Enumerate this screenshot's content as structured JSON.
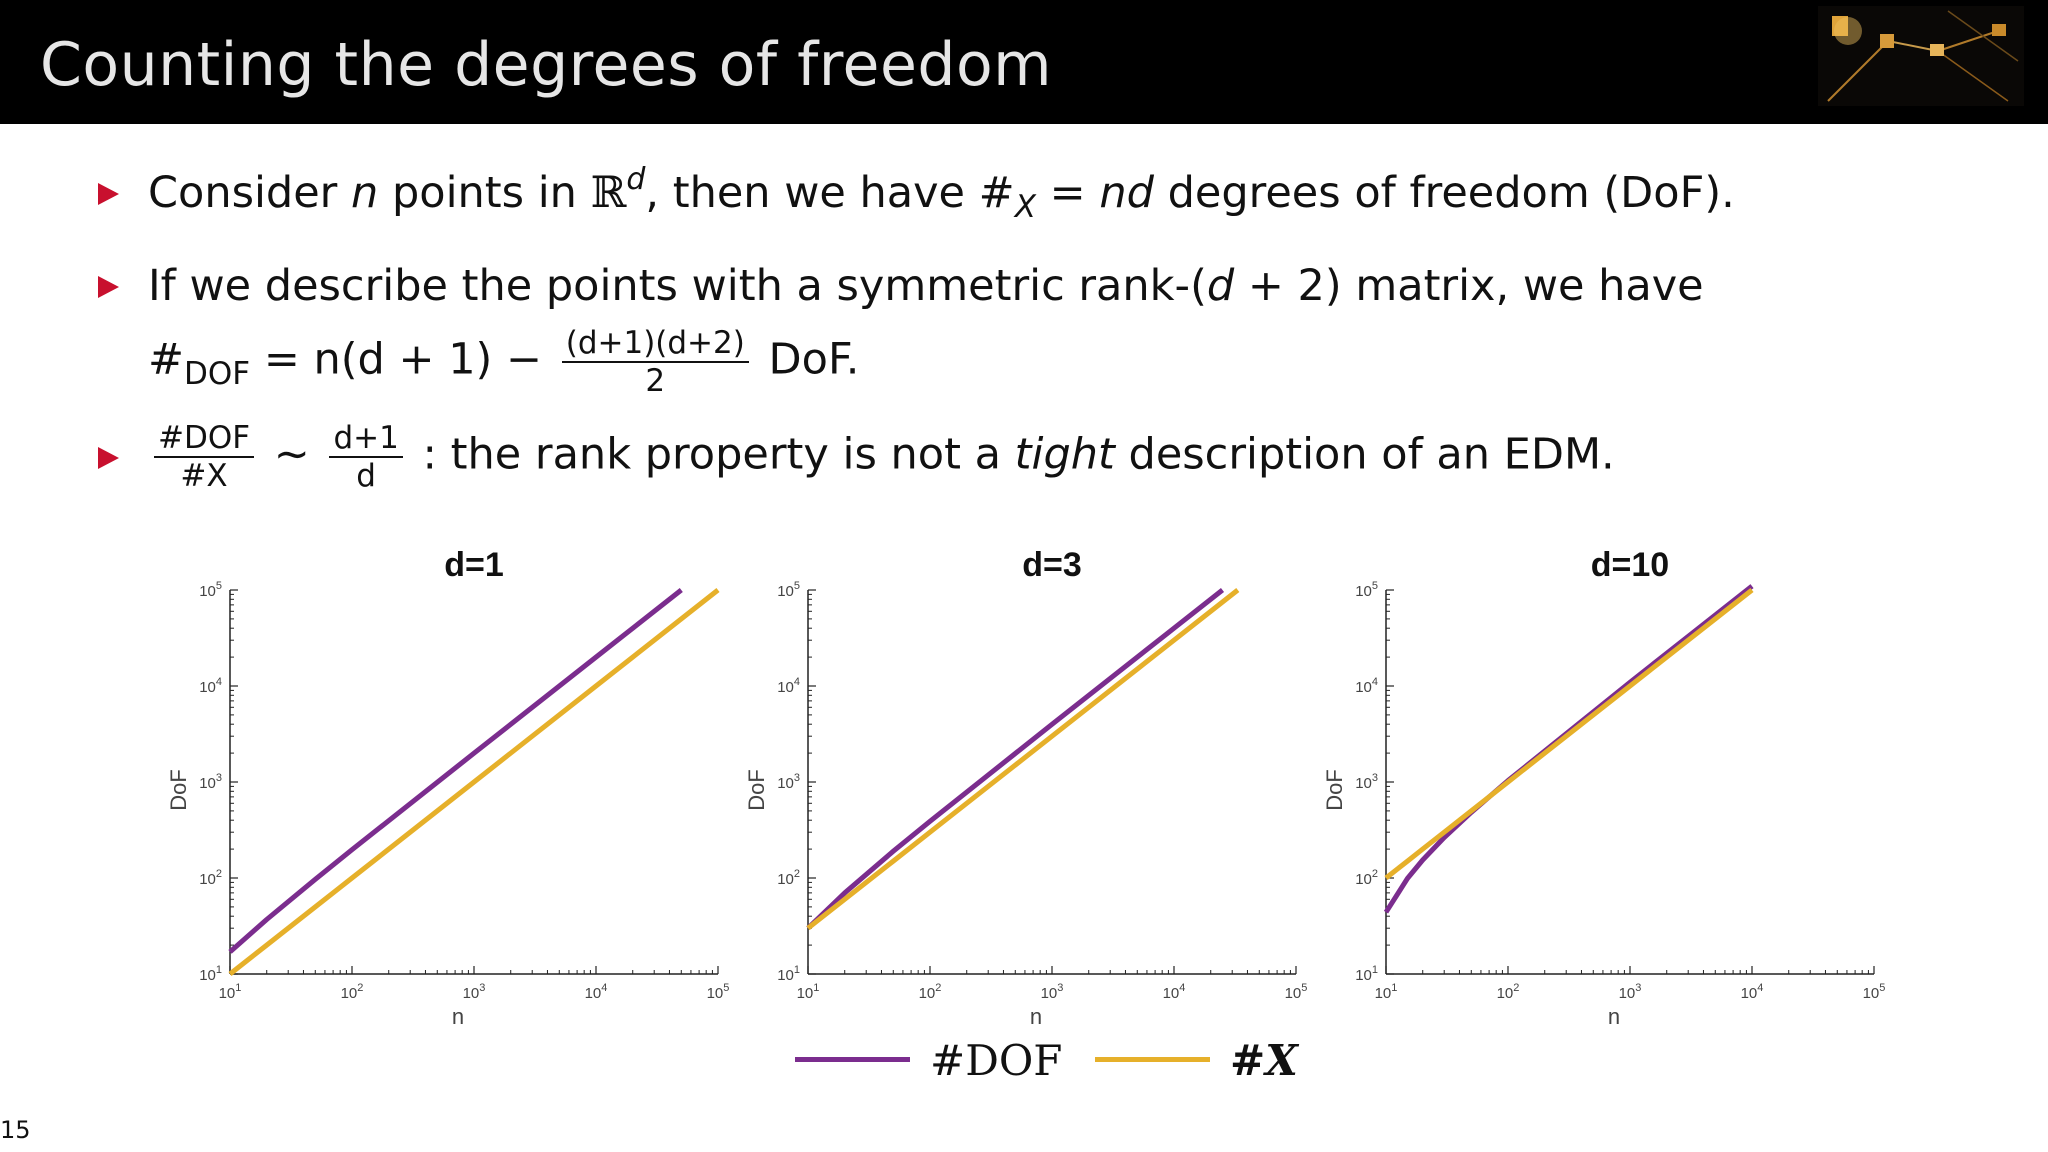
{
  "slide": {
    "title": "Counting the degrees of freedom",
    "page_number": "15"
  },
  "bullets": {
    "b1": {
      "t1": "Consider",
      "n": "n",
      "t2": "points in",
      "R": "ℝ",
      "d": "d",
      "t3": ", then we have #",
      "X": "X",
      "eq": "=",
      "nd": "nd",
      "t4": "degrees of freedom (DoF)."
    },
    "b2": {
      "line1_a": "If we describe the points with a symmetric rank-(",
      "line1_d": "d",
      "line1_b": "+ 2) matrix, we have",
      "hash": "#",
      "dof_sub": "DOF",
      "eq": "= n(d + 1) −",
      "frac_num": "(d+1)(d+2)",
      "frac_den": "2",
      "tail": "DoF."
    },
    "b3": {
      "frac1_num": "#DOF",
      "frac1_den": "#X",
      "sim": "∼",
      "frac2_num": "d+1",
      "frac2_den": "d",
      "t1": ": the rank property is not a",
      "tight": "tight",
      "t2": "description of an EDM."
    }
  },
  "legend": {
    "dof_label": "#DOF",
    "x_label": "#X"
  },
  "colors": {
    "dof": "#7b2d8e",
    "x": "#e6b02a",
    "bullet": "#c8102e"
  },
  "chart_data": [
    {
      "type": "line",
      "title": "d=1",
      "xlabel": "n",
      "ylabel": "DoF",
      "xscale": "log",
      "yscale": "log",
      "xlim": [
        10,
        100000
      ],
      "ylim": [
        10,
        100000
      ],
      "xticks": [
        "10^1",
        "10^2",
        "10^3",
        "10^4",
        "10^5"
      ],
      "yticks": [
        "10^1",
        "10^2",
        "10^3",
        "10^4",
        "10^5"
      ],
      "series": [
        {
          "name": "#DOF",
          "x": [
            10,
            20,
            50,
            100,
            1000,
            10000,
            50000
          ],
          "y": [
            17,
            37,
            97,
            197,
            1997,
            19997,
            99997
          ]
        },
        {
          "name": "#X",
          "x": [
            10,
            20,
            50,
            100,
            1000,
            10000,
            100000
          ],
          "y": [
            10,
            20,
            50,
            100,
            1000,
            10000,
            100000
          ]
        }
      ]
    },
    {
      "type": "line",
      "title": "d=3",
      "xlabel": "n",
      "ylabel": "DoF",
      "xscale": "log",
      "yscale": "log",
      "xlim": [
        10,
        100000
      ],
      "ylim": [
        10,
        100000
      ],
      "xticks": [
        "10^1",
        "10^2",
        "10^3",
        "10^4",
        "10^5"
      ],
      "yticks": [
        "10^1",
        "10^2",
        "10^3",
        "10^4",
        "10^5"
      ],
      "series": [
        {
          "name": "#DOF",
          "x": [
            10,
            20,
            50,
            100,
            1000,
            10000,
            25000
          ],
          "y": [
            30,
            70,
            190,
            390,
            3990,
            39990,
            99990
          ]
        },
        {
          "name": "#X",
          "x": [
            10,
            20,
            50,
            100,
            1000,
            10000,
            33333
          ],
          "y": [
            30,
            60,
            150,
            300,
            3000,
            30000,
            99999
          ]
        }
      ]
    },
    {
      "type": "line",
      "title": "d=10",
      "xlabel": "n",
      "ylabel": "DoF",
      "xscale": "log",
      "yscale": "log",
      "xlim": [
        10,
        100000
      ],
      "ylim": [
        10,
        100000
      ],
      "xticks": [
        "10^1",
        "10^2",
        "10^3",
        "10^4",
        "10^5"
      ],
      "yticks": [
        "10^1",
        "10^2",
        "10^3",
        "10^4",
        "10^5"
      ],
      "series": [
        {
          "name": "#DOF",
          "x": [
            10,
            15,
            20,
            30,
            50,
            100,
            1000,
            10000
          ],
          "y": [
            44,
            99,
            154,
            264,
            484,
            1034,
            10934,
            109934
          ]
        },
        {
          "name": "#X",
          "x": [
            10,
            15,
            20,
            30,
            50,
            100,
            1000,
            10000
          ],
          "y": [
            100,
            150,
            200,
            300,
            500,
            1000,
            10000,
            100000
          ]
        }
      ]
    }
  ]
}
